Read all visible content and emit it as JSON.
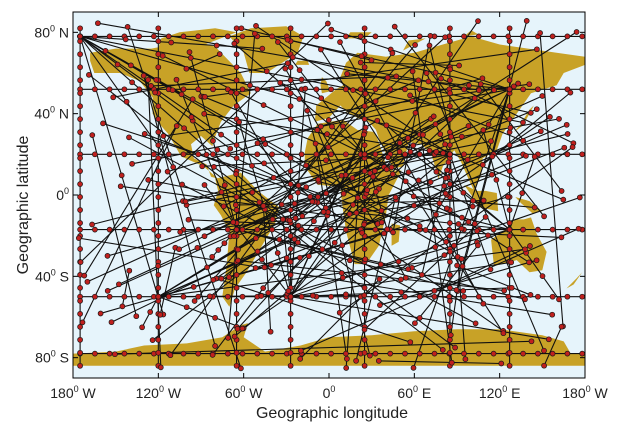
{
  "chart_data": {
    "type": "map",
    "xlabel": "Geographic longitude",
    "ylabel": "Geographic latitude",
    "xlim": [
      -180,
      180
    ],
    "ylim": [
      -90,
      90
    ],
    "grid": false,
    "xticks": [
      {
        "value": -180,
        "num": "180",
        "sup": "0",
        "dir": "W"
      },
      {
        "value": -120,
        "num": "120",
        "sup": "0",
        "dir": "W"
      },
      {
        "value": -60,
        "num": "60",
        "sup": "0",
        "dir": "W"
      },
      {
        "value": 0,
        "num": "0",
        "sup": "0",
        "dir": ""
      },
      {
        "value": 60,
        "num": "60",
        "sup": "0",
        "dir": "E"
      },
      {
        "value": 120,
        "num": "120",
        "sup": "0",
        "dir": "E"
      },
      {
        "value": 180,
        "num": "180",
        "sup": "0",
        "dir": "W"
      }
    ],
    "yticks": [
      {
        "value": 80,
        "num": "80",
        "sup": "0",
        "dir": "N"
      },
      {
        "value": 40,
        "num": "40",
        "sup": "0",
        "dir": "N"
      },
      {
        "value": 0,
        "num": "0",
        "sup": "0",
        "dir": ""
      },
      {
        "value": -40,
        "num": "40",
        "sup": "0",
        "dir": "S"
      },
      {
        "value": -80,
        "num": "80",
        "sup": "0",
        "dir": "S"
      }
    ],
    "colors": {
      "ocean": "#e6f4fb",
      "land": "#c8a227",
      "edge": "#111111",
      "node": "#c0201e",
      "node_outline": "#1a1a1a"
    },
    "hub_lons": [
      -175,
      -120,
      -65,
      -27,
      25,
      85,
      127
    ],
    "hub_lats": [
      78,
      52,
      20,
      -17,
      -50,
      -78
    ],
    "extra_hubs": [
      [
        -175,
        78
      ],
      [
        127,
        52
      ],
      [
        127,
        -17
      ],
      [
        -27,
        -50
      ],
      [
        -120,
        -50
      ],
      [
        85,
        20
      ],
      [
        25,
        20
      ],
      [
        -65,
        -17
      ]
    ],
    "random_edges": 95,
    "continents": [
      {
        "name": "north-america",
        "coords": [
          [
            -168,
            70
          ],
          [
            -150,
            72
          ],
          [
            -125,
            72
          ],
          [
            -95,
            76
          ],
          [
            -80,
            73
          ],
          [
            -62,
            60
          ],
          [
            -55,
            50
          ],
          [
            -67,
            44
          ],
          [
            -76,
            36
          ],
          [
            -81,
            27
          ],
          [
            -82,
            24
          ],
          [
            -90,
            29
          ],
          [
            -97,
            25
          ],
          [
            -95,
            18
          ],
          [
            -86,
            15
          ],
          [
            -83,
            9
          ],
          [
            -78,
            8
          ],
          [
            -88,
            14
          ],
          [
            -104,
            19
          ],
          [
            -113,
            30
          ],
          [
            -118,
            34
          ],
          [
            -124,
            40
          ],
          [
            -124,
            48
          ],
          [
            -133,
            56
          ],
          [
            -147,
            60
          ],
          [
            -165,
            60
          ],
          [
            -168,
            66
          ]
        ]
      },
      {
        "name": "greenland",
        "coords": [
          [
            -56,
            60
          ],
          [
            -44,
            60
          ],
          [
            -22,
            70
          ],
          [
            -18,
            78
          ],
          [
            -30,
            83
          ],
          [
            -55,
            82
          ],
          [
            -70,
            78
          ],
          [
            -60,
            70
          ]
        ]
      },
      {
        "name": "south-america",
        "coords": [
          [
            -80,
            8
          ],
          [
            -62,
            11
          ],
          [
            -50,
            2
          ],
          [
            -35,
            -6
          ],
          [
            -38,
            -14
          ],
          [
            -48,
            -26
          ],
          [
            -58,
            -38
          ],
          [
            -66,
            -46
          ],
          [
            -70,
            -55
          ],
          [
            -75,
            -50
          ],
          [
            -72,
            -35
          ],
          [
            -70,
            -18
          ],
          [
            -76,
            -10
          ],
          [
            -81,
            -5
          ],
          [
            -78,
            2
          ]
        ]
      },
      {
        "name": "eurasia",
        "coords": [
          [
            -10,
            36
          ],
          [
            -9,
            44
          ],
          [
            -2,
            48
          ],
          [
            5,
            52
          ],
          [
            10,
            54
          ],
          [
            8,
            58
          ],
          [
            12,
            65
          ],
          [
            20,
            70
          ],
          [
            40,
            68
          ],
          [
            60,
            70
          ],
          [
            80,
            74
          ],
          [
            100,
            78
          ],
          [
            120,
            74
          ],
          [
            140,
            72
          ],
          [
            160,
            70
          ],
          [
            180,
            68
          ],
          [
            180,
            64
          ],
          [
            165,
            60
          ],
          [
            160,
            54
          ],
          [
            142,
            50
          ],
          [
            135,
            43
          ],
          [
            128,
            36
          ],
          [
            122,
            30
          ],
          [
            118,
            22
          ],
          [
            108,
            18
          ],
          [
            107,
            10
          ],
          [
            102,
            2
          ],
          [
            98,
            8
          ],
          [
            93,
            16
          ],
          [
            88,
            22
          ],
          [
            80,
            14
          ],
          [
            77,
            8
          ],
          [
            72,
            20
          ],
          [
            65,
            25
          ],
          [
            56,
            26
          ],
          [
            52,
            14
          ],
          [
            45,
            13
          ],
          [
            35,
            28
          ],
          [
            33,
            32
          ],
          [
            28,
            36
          ],
          [
            20,
            38
          ],
          [
            14,
            40
          ],
          [
            8,
            44
          ],
          [
            0,
            38
          ]
        ]
      },
      {
        "name": "africa",
        "coords": [
          [
            -17,
            21
          ],
          [
            -15,
            28
          ],
          [
            -8,
            35
          ],
          [
            10,
            37
          ],
          [
            20,
            32
          ],
          [
            32,
            31
          ],
          [
            35,
            26
          ],
          [
            40,
            15
          ],
          [
            45,
            12
          ],
          [
            51,
            12
          ],
          [
            42,
            0
          ],
          [
            40,
            -10
          ],
          [
            35,
            -25
          ],
          [
            26,
            -34
          ],
          [
            18,
            -34
          ],
          [
            12,
            -18
          ],
          [
            9,
            -3
          ],
          [
            8,
            4
          ],
          [
            -8,
            5
          ],
          [
            -17,
            14
          ]
        ]
      },
      {
        "name": "madagascar",
        "coords": [
          [
            44,
            -14
          ],
          [
            50,
            -15
          ],
          [
            49,
            -23
          ],
          [
            44,
            -25
          ]
        ]
      },
      {
        "name": "australia",
        "coords": [
          [
            114,
            -22
          ],
          [
            122,
            -18
          ],
          [
            131,
            -12
          ],
          [
            137,
            -12
          ],
          [
            142,
            -11
          ],
          [
            146,
            -19
          ],
          [
            153,
            -28
          ],
          [
            150,
            -37
          ],
          [
            141,
            -38
          ],
          [
            132,
            -32
          ],
          [
            116,
            -35
          ]
        ]
      },
      {
        "name": "new-guinea",
        "coords": [
          [
            131,
            -1
          ],
          [
            141,
            -3
          ],
          [
            150,
            -8
          ],
          [
            143,
            -9
          ],
          [
            135,
            -4
          ]
        ]
      },
      {
        "name": "sumatra-borneo",
        "coords": [
          [
            95,
            5
          ],
          [
            106,
            -6
          ],
          [
            119,
            -8
          ],
          [
            118,
            1
          ],
          [
            110,
            2
          ],
          [
            104,
            2
          ]
        ]
      },
      {
        "name": "japan",
        "coords": [
          [
            130,
            31
          ],
          [
            136,
            34
          ],
          [
            141,
            40
          ],
          [
            144,
            44
          ],
          [
            141,
            42
          ],
          [
            135,
            35
          ]
        ]
      },
      {
        "name": "uk",
        "coords": [
          [
            -5,
            50
          ],
          [
            1,
            51
          ],
          [
            -2,
            56
          ],
          [
            -5,
            58
          ],
          [
            -6,
            54
          ]
        ]
      },
      {
        "name": "iceland",
        "coords": [
          [
            -24,
            64
          ],
          [
            -14,
            64
          ],
          [
            -15,
            66
          ],
          [
            -22,
            66
          ]
        ]
      },
      {
        "name": "nz",
        "coords": [
          [
            167,
            -46
          ],
          [
            174,
            -41
          ],
          [
            178,
            -38
          ],
          [
            172,
            -44
          ]
        ]
      },
      {
        "name": "antarctica",
        "coords": [
          [
            -180,
            -84
          ],
          [
            -180,
            -78
          ],
          [
            -150,
            -77
          ],
          [
            -130,
            -74
          ],
          [
            -100,
            -73
          ],
          [
            -75,
            -70
          ],
          [
            -62,
            -64
          ],
          [
            -57,
            -63
          ],
          [
            -60,
            -70
          ],
          [
            -45,
            -77
          ],
          [
            -20,
            -74
          ],
          [
            0,
            -70
          ],
          [
            30,
            -69
          ],
          [
            60,
            -67
          ],
          [
            90,
            -66
          ],
          [
            120,
            -66
          ],
          [
            150,
            -69
          ],
          [
            165,
            -72
          ],
          [
            170,
            -78
          ],
          [
            180,
            -78
          ],
          [
            180,
            -84
          ]
        ]
      },
      {
        "name": "arctic-islands-na",
        "coords": [
          [
            -120,
            72
          ],
          [
            -95,
            72
          ],
          [
            -80,
            76
          ],
          [
            -65,
            80
          ],
          [
            -80,
            82
          ],
          [
            -105,
            80
          ],
          [
            -118,
            77
          ]
        ]
      },
      {
        "name": "svalbard-franz",
        "coords": [
          [
            12,
            77
          ],
          [
            25,
            77
          ],
          [
            30,
            80
          ],
          [
            15,
            80
          ]
        ]
      },
      {
        "name": "novaya-zemlya",
        "coords": [
          [
            52,
            71
          ],
          [
            60,
            74
          ],
          [
            68,
            77
          ],
          [
            56,
            76
          ]
        ]
      },
      {
        "name": "severnaya",
        "coords": [
          [
            95,
            78
          ],
          [
            105,
            79
          ],
          [
            100,
            81
          ]
        ]
      }
    ]
  }
}
